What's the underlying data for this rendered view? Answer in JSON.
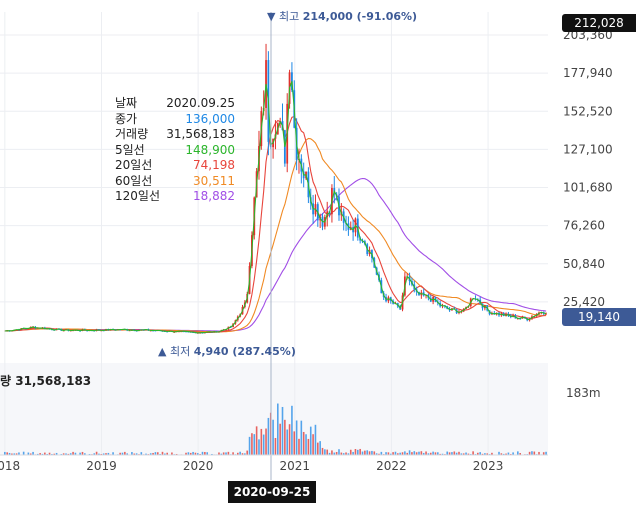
{
  "tooltip": {
    "rows": [
      {
        "label": "날짜",
        "value": "2020.09.25",
        "color": "#222222"
      },
      {
        "label": "종가",
        "value": "136,000",
        "color": "#1e88e5"
      },
      {
        "label": "거래량",
        "value": "31,568,183",
        "color": "#222222"
      },
      {
        "label": "5일선",
        "value": "148,900",
        "color": "#2bb52b"
      },
      {
        "label": "20일선",
        "value": "74,198",
        "color": "#e8453c"
      },
      {
        "label": "60일선",
        "value": "30,511",
        "color": "#f08a24"
      },
      {
        "label": "120일선",
        "value": "18,882",
        "color": "#a14ee6"
      }
    ]
  },
  "annotations": {
    "high_prefix": "▼ 최고",
    "high_value": "214,000 (-91.06%)",
    "low_prefix": "▲ 최저",
    "low_value": "4,940 (287.45%)"
  },
  "badges": {
    "top_price": "212,028",
    "current_price": "19,140",
    "current_color": "#3d5a96",
    "crosshair_date": "2020-09-25"
  },
  "volume_panel": {
    "label_prefix": "량",
    "label_value": "31,568,183",
    "axis_label": "183m"
  },
  "chart_data": {
    "type": "candlestick",
    "y_ticks": [
      "203,360",
      "177,940",
      "152,520",
      "127,100",
      "101,680",
      "76,260",
      "50,840",
      "25,420"
    ],
    "y_tick_values": [
      203360,
      177940,
      152520,
      127100,
      101680,
      76260,
      50840,
      25420
    ],
    "x_ticks": [
      "2018",
      "2019",
      "2020",
      "2021",
      "2022",
      "2023"
    ],
    "x_tick_years": [
      2018.0,
      2019.0,
      2020.0,
      2021.0,
      2022.0,
      2023.0
    ],
    "x_range": [
      2018.0,
      2023.6
    ],
    "y_range": [
      0,
      212028
    ],
    "colors": {
      "up": "#e0312c",
      "down": "#1e88e5",
      "ma5": "#2bb52b",
      "ma20": "#e8453c",
      "ma60": "#f08a24",
      "ma120": "#a14ee6"
    },
    "close_points": [
      [
        2018.0,
        6000
      ],
      [
        2018.3,
        8500
      ],
      [
        2018.6,
        6500
      ],
      [
        2018.9,
        6500
      ],
      [
        2019.2,
        7000
      ],
      [
        2019.5,
        6500
      ],
      [
        2019.8,
        5500
      ],
      [
        2020.0,
        5000
      ],
      [
        2020.2,
        5500
      ],
      [
        2020.35,
        9000
      ],
      [
        2020.45,
        20000
      ],
      [
        2020.5,
        25000
      ],
      [
        2020.55,
        70000
      ],
      [
        2020.6,
        105000
      ],
      [
        2020.65,
        140000
      ],
      [
        2020.7,
        180000
      ],
      [
        2020.73,
        136000
      ],
      [
        2020.8,
        150000
      ],
      [
        2020.9,
        125000
      ],
      [
        2020.95,
        200000
      ],
      [
        2021.0,
        135000
      ],
      [
        2021.1,
        110000
      ],
      [
        2021.2,
        90000
      ],
      [
        2021.3,
        80000
      ],
      [
        2021.4,
        100000
      ],
      [
        2021.5,
        75000
      ],
      [
        2021.6,
        78000
      ],
      [
        2021.7,
        70000
      ],
      [
        2021.8,
        55000
      ],
      [
        2021.9,
        30000
      ],
      [
        2022.0,
        25000
      ],
      [
        2022.1,
        20000
      ],
      [
        2022.15,
        45000
      ],
      [
        2022.25,
        30000
      ],
      [
        2022.4,
        28000
      ],
      [
        2022.5,
        23000
      ],
      [
        2022.6,
        20000
      ],
      [
        2022.75,
        19000
      ],
      [
        2022.85,
        30000
      ],
      [
        2023.0,
        19000
      ],
      [
        2023.2,
        16000
      ],
      [
        2023.4,
        14000
      ],
      [
        2023.55,
        19140
      ]
    ],
    "high_close": 214000,
    "low_close": 4940
  }
}
